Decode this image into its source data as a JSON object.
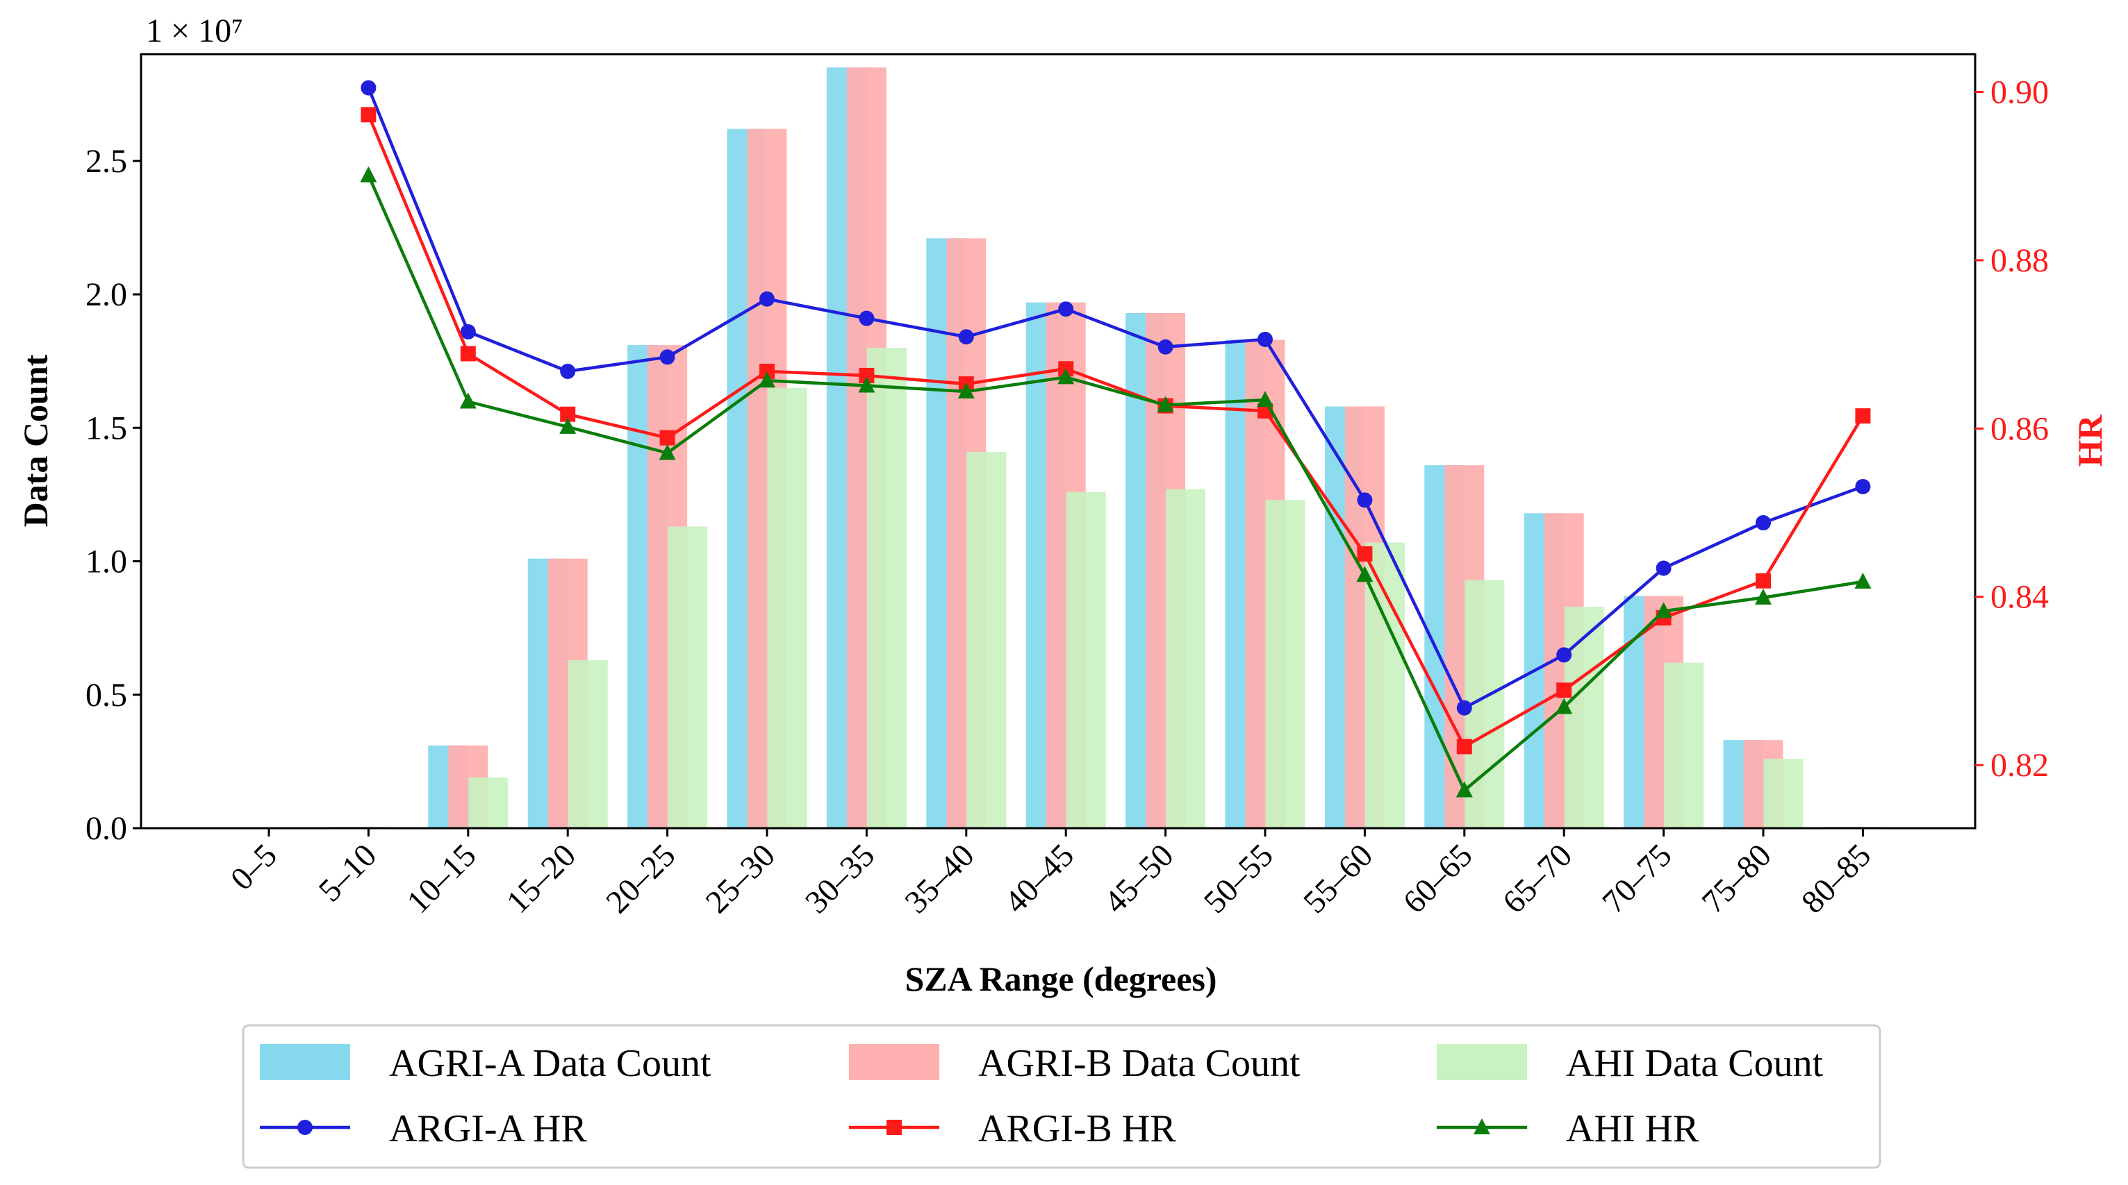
{
  "chart_data": {
    "type": "bar",
    "xlabel": "SZA Range (degrees)",
    "ylabel": "Data Count",
    "ylabel_right": "HR",
    "y_scale_label": "1 × 10⁷",
    "y_scale_factor": 10000000,
    "ylim": [
      0,
      29000000
    ],
    "ylim_right": [
      0.8125,
      0.9045
    ],
    "yticks": [
      0,
      5000000,
      10000000,
      15000000,
      20000000,
      25000000
    ],
    "yticks_labels": [
      "0.0",
      "0.5",
      "1.0",
      "1.5",
      "2.0",
      "2.5"
    ],
    "yticks_right": [
      0.82,
      0.84,
      0.86,
      0.88,
      0.9
    ],
    "yticks_right_labels": [
      "0.82",
      "0.84",
      "0.86",
      "0.88",
      "0.90"
    ],
    "categories": [
      "0–5",
      "5–10",
      "10–15",
      "15–20",
      "20–25",
      "25–30",
      "30–35",
      "35–40",
      "40–45",
      "45–50",
      "50–55",
      "55–60",
      "60–65",
      "65–70",
      "70–75",
      "75–80",
      "80–85"
    ],
    "bar_series": [
      {
        "name": "AGRI-A Data Count",
        "color": "#87d9ee",
        "values": [
          0,
          50000,
          3100000,
          10100000,
          18100000,
          26200000,
          28500000,
          22100000,
          19700000,
          19300000,
          18300000,
          15800000,
          13600000,
          11800000,
          8700000,
          3300000,
          50000
        ]
      },
      {
        "name": "AGRI-B Data Count",
        "color": "#ffb0b0",
        "values": [
          0,
          50000,
          3100000,
          10100000,
          18100000,
          26200000,
          28500000,
          22100000,
          19700000,
          19300000,
          18300000,
          15800000,
          13600000,
          11800000,
          8700000,
          3300000,
          50000
        ]
      },
      {
        "name": "AHI Data Count",
        "color": "#c8f2c0",
        "values": [
          0,
          20000,
          1900000,
          6300000,
          11300000,
          16500000,
          18000000,
          14100000,
          12600000,
          12700000,
          12300000,
          10700000,
          9300000,
          8300000,
          6200000,
          2600000,
          20000
        ]
      }
    ],
    "line_series": [
      {
        "name": "ARGI-A HR",
        "color": "#1f1fdc",
        "marker": "circle",
        "values": [
          null,
          0.9005,
          0.8715,
          0.8668,
          0.8685,
          0.8754,
          0.8731,
          0.8709,
          0.8742,
          0.8697,
          0.8706,
          0.8515,
          0.8268,
          0.8331,
          0.8434,
          0.8488,
          0.8531
        ]
      },
      {
        "name": "ARGI-B HR",
        "color": "#ff1a1a",
        "marker": "square",
        "values": [
          null,
          0.8973,
          0.8689,
          0.8617,
          0.8589,
          0.8668,
          0.8663,
          0.8653,
          0.8671,
          0.8627,
          0.8621,
          0.8451,
          0.8222,
          0.8289,
          0.8375,
          0.8419,
          0.8615
        ]
      },
      {
        "name": "AHI HR",
        "color": "#0a7d0a",
        "marker": "triangle",
        "values": [
          null,
          0.8901,
          0.8632,
          0.8602,
          0.8571,
          0.8657,
          0.8651,
          0.8644,
          0.8661,
          0.8628,
          0.8634,
          0.8426,
          0.817,
          0.8269,
          0.8383,
          0.8399,
          0.8418
        ]
      }
    ],
    "legend": {
      "location": "bottom-center",
      "columns": 3
    }
  }
}
